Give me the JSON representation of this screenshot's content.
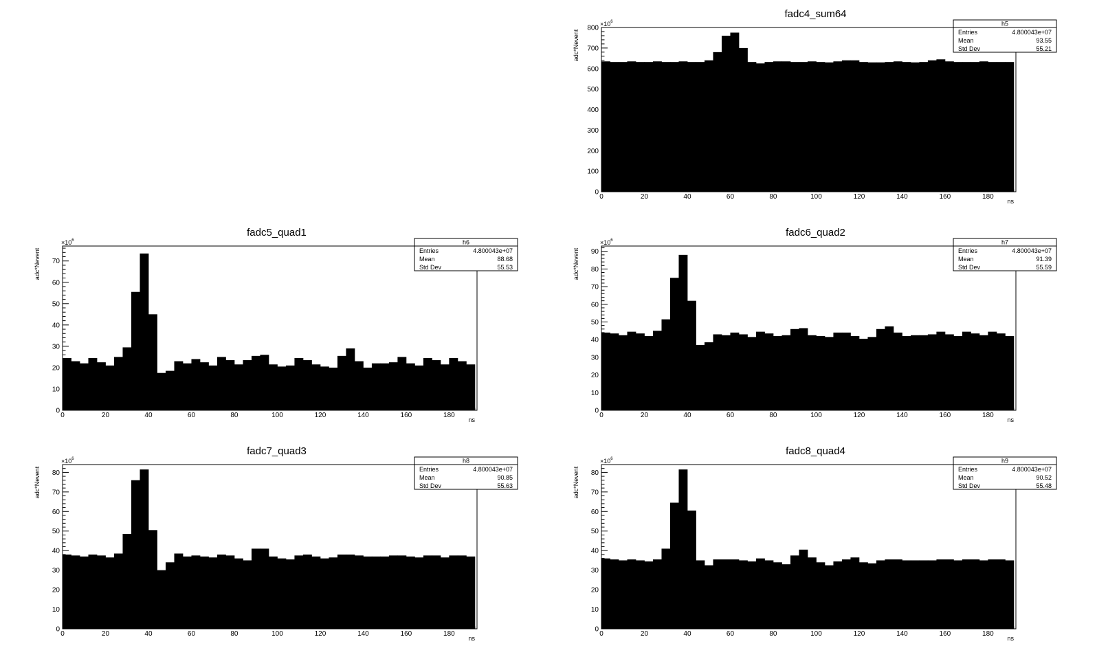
{
  "chart_data": [
    {
      "type": "bar",
      "title": "fadc4_sum64",
      "xlabel": "ns",
      "ylabel": "adc*Nevent",
      "y_multiplier": "×10",
      "y_multiplier_exp": "6",
      "xlim": [
        0,
        193
      ],
      "ylim": [
        0,
        800
      ],
      "x_ticks": [
        0,
        20,
        40,
        60,
        80,
        100,
        120,
        140,
        160,
        180
      ],
      "y_ticks": [
        0,
        100,
        200,
        300,
        400,
        500,
        600,
        700,
        800
      ],
      "bin_width": 4,
      "values": [
        635,
        632,
        632,
        635,
        632,
        632,
        635,
        632,
        632,
        635,
        632,
        632,
        640,
        680,
        760,
        775,
        700,
        632,
        625,
        632,
        635,
        635,
        632,
        632,
        635,
        632,
        630,
        635,
        640,
        640,
        632,
        630,
        630,
        632,
        635,
        632,
        630,
        632,
        640,
        645,
        635,
        632,
        632,
        632,
        635,
        632,
        632,
        632
      ],
      "stats": {
        "name": "h5",
        "entries_label": "Entries",
        "entries": "4.800043e+07",
        "mean_label": "Mean",
        "mean": "93.55",
        "std_label": "Std Dev",
        "std": "55.21"
      }
    },
    {
      "type": "bar",
      "title": "fadc5_quad1",
      "xlabel": "ns",
      "ylabel": "adc*Nevent",
      "y_multiplier": "×10",
      "y_multiplier_exp": "6",
      "xlim": [
        0,
        193
      ],
      "ylim": [
        0,
        77
      ],
      "x_ticks": [
        0,
        20,
        40,
        60,
        80,
        100,
        120,
        140,
        160,
        180
      ],
      "y_ticks": [
        0,
        10,
        20,
        30,
        40,
        50,
        60,
        70
      ],
      "bin_width": 4,
      "values": [
        24.5,
        23,
        22,
        24.5,
        22.5,
        21,
        25,
        29.5,
        55.5,
        73.5,
        45,
        17.5,
        18.5,
        23,
        22,
        24,
        22.5,
        21,
        25,
        23.5,
        21.5,
        23.5,
        25.5,
        26,
        21.5,
        20.5,
        21,
        24.5,
        23.5,
        21.5,
        20.5,
        20,
        25.5,
        29,
        23,
        20,
        22,
        22,
        22.5,
        25,
        22,
        21,
        24.5,
        23.5,
        21.5,
        24.5,
        23,
        21.5
      ],
      "stats": {
        "name": "h6",
        "entries_label": "Entries",
        "entries": "4.800043e+07",
        "mean_label": "Mean",
        "mean": "88.68",
        "std_label": "Std Dev",
        "std": "55.53"
      }
    },
    {
      "type": "bar",
      "title": "fadc6_quad2",
      "xlabel": "ns",
      "ylabel": "adc*Nevent",
      "y_multiplier": "×10",
      "y_multiplier_exp": "6",
      "xlim": [
        0,
        193
      ],
      "ylim": [
        0,
        93
      ],
      "x_ticks": [
        0,
        20,
        40,
        60,
        80,
        100,
        120,
        140,
        160,
        180
      ],
      "y_ticks": [
        0,
        10,
        20,
        30,
        40,
        50,
        60,
        70,
        80,
        90
      ],
      "bin_width": 4,
      "values": [
        44,
        43.5,
        42.5,
        44.5,
        43.5,
        42,
        45,
        51.5,
        75,
        88,
        62,
        37,
        38.5,
        43,
        42.5,
        44,
        43,
        41.5,
        44.5,
        43.5,
        42,
        42.5,
        46,
        46.5,
        42.5,
        42,
        41.5,
        44,
        44,
        42,
        40.5,
        41.5,
        46,
        47.5,
        44,
        42,
        42.5,
        42.5,
        43,
        44.5,
        43,
        42,
        44.5,
        43.5,
        42.5,
        44.5,
        43.5,
        42
      ],
      "stats": {
        "name": "h7",
        "entries_label": "Entries",
        "entries": "4.800043e+07",
        "mean_label": "Mean",
        "mean": "91.39",
        "std_label": "Std Dev",
        "std": "55.59"
      }
    },
    {
      "type": "bar",
      "title": "fadc7_quad3",
      "xlabel": "ns",
      "ylabel": "adc*Nevent",
      "y_multiplier": "×10",
      "y_multiplier_exp": "6",
      "xlim": [
        0,
        193
      ],
      "ylim": [
        0,
        84
      ],
      "x_ticks": [
        0,
        20,
        40,
        60,
        80,
        100,
        120,
        140,
        160,
        180
      ],
      "y_ticks": [
        0,
        10,
        20,
        30,
        40,
        50,
        60,
        70,
        80
      ],
      "bin_width": 4,
      "values": [
        38,
        37.5,
        37,
        38,
        37.5,
        36.5,
        38.5,
        48.5,
        76,
        81.5,
        50.5,
        30,
        34,
        38.5,
        37,
        37.5,
        37,
        36.5,
        38,
        37.5,
        36,
        35,
        41,
        41,
        37,
        36,
        35.5,
        37.5,
        38,
        37,
        36,
        36.5,
        38,
        38,
        37.5,
        37,
        37,
        37,
        37.5,
        37.5,
        37,
        36.5,
        37.5,
        37.5,
        36.5,
        37.5,
        37.5,
        37
      ],
      "stats": {
        "name": "h8",
        "entries_label": "Entries",
        "entries": "4.800043e+07",
        "mean_label": "Mean",
        "mean": "90.85",
        "std_label": "Std Dev",
        "std": "55.63"
      }
    },
    {
      "type": "bar",
      "title": "fadc8_quad4",
      "xlabel": "ns",
      "ylabel": "adc*Nevent",
      "y_multiplier": "×10",
      "y_multiplier_exp": "6",
      "xlim": [
        0,
        193
      ],
      "ylim": [
        0,
        84
      ],
      "x_ticks": [
        0,
        20,
        40,
        60,
        80,
        100,
        120,
        140,
        160,
        180
      ],
      "y_ticks": [
        0,
        10,
        20,
        30,
        40,
        50,
        60,
        70,
        80
      ],
      "bin_width": 4,
      "values": [
        36,
        35.5,
        35,
        35.5,
        35,
        34.5,
        35.5,
        41,
        64.5,
        81.5,
        60.5,
        35,
        32.5,
        35.5,
        35.5,
        35.5,
        35,
        34.5,
        36,
        35,
        34,
        33,
        37.5,
        40.5,
        36.5,
        34,
        32.5,
        34.5,
        35.5,
        36.5,
        34,
        33.5,
        35,
        35.5,
        35.5,
        35,
        35,
        35,
        35,
        35.5,
        35.5,
        35,
        35.5,
        35.5,
        35,
        35.5,
        35.5,
        35
      ],
      "stats": {
        "name": "h9",
        "entries_label": "Entries",
        "entries": "4.800043e+07",
        "mean_label": "Mean",
        "mean": "90.52",
        "std_label": "Std Dev",
        "std": "55.48"
      }
    }
  ]
}
